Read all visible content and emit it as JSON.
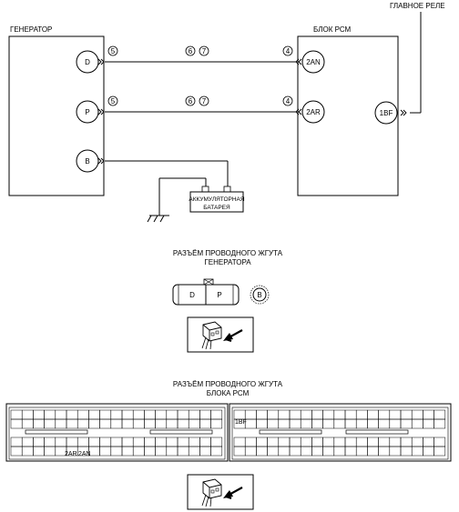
{
  "diagram": {
    "main_relay_label": "ГЛАВНОЕ РЕЛЕ",
    "generator": {
      "title": "ГЕНЕРАТОР",
      "terminals": [
        "D",
        "P",
        "B"
      ]
    },
    "pcm": {
      "title": "БЛОК РСМ",
      "terminals": [
        "2AN",
        "2AR",
        "1BF"
      ]
    },
    "wire_refs": {
      "gen_side": "5",
      "mid_a": "6",
      "mid_b": "7",
      "pcm_side": "4"
    },
    "battery": {
      "line1": "АККУМУЛЯТОРНАЯ",
      "line2": "БАТАРЕЯ"
    }
  },
  "gen_connector": {
    "title_line1": "РАЗЪЁМ ПРОВОДНОГО ЖГУТА",
    "title_line2": "ГЕНЕРАТОРА",
    "pins": [
      "D",
      "P"
    ],
    "stud": "B"
  },
  "pcm_connector": {
    "title_line1": "РАЗЪЁМ ПРОВОДНОГО ЖГУТА",
    "title_line2": "БЛОКА РСМ",
    "pin_1bf": "1BF",
    "pin_2ar": "2AR",
    "pin_2an": "2AN"
  }
}
